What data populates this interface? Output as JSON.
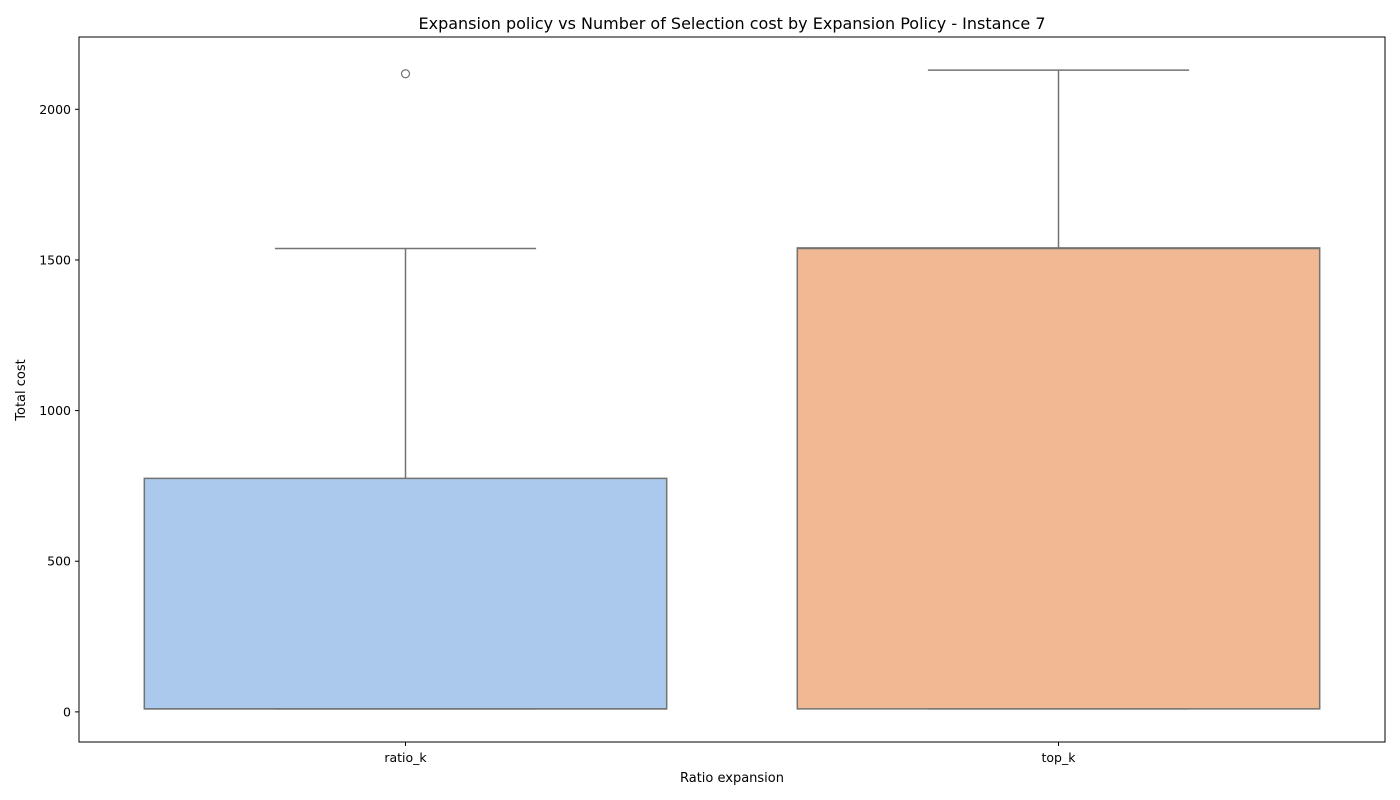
{
  "chart_data": {
    "type": "box",
    "title": "Expansion policy vs Number of Selection cost by Expansion Policy - Instance 7",
    "xlabel": "Ratio expansion",
    "ylabel": "Total cost",
    "ylim": [
      -100,
      2240
    ],
    "yticks": [
      0,
      500,
      1000,
      1500,
      2000
    ],
    "grid": false,
    "categories": [
      "ratio_k",
      "top_k"
    ],
    "boxes": [
      {
        "category": "ratio_k",
        "color": "#abc9ed",
        "whisker_low": 10,
        "q1": 10,
        "median": 10,
        "q3": 775,
        "whisker_high": 1538,
        "outliers": [
          2118
        ]
      },
      {
        "category": "top_k",
        "color": "#f0b893",
        "whisker_low": 10,
        "q1": 10,
        "median": 1538,
        "q3": 1540,
        "whisker_high": 2130,
        "outliers": []
      }
    ]
  }
}
